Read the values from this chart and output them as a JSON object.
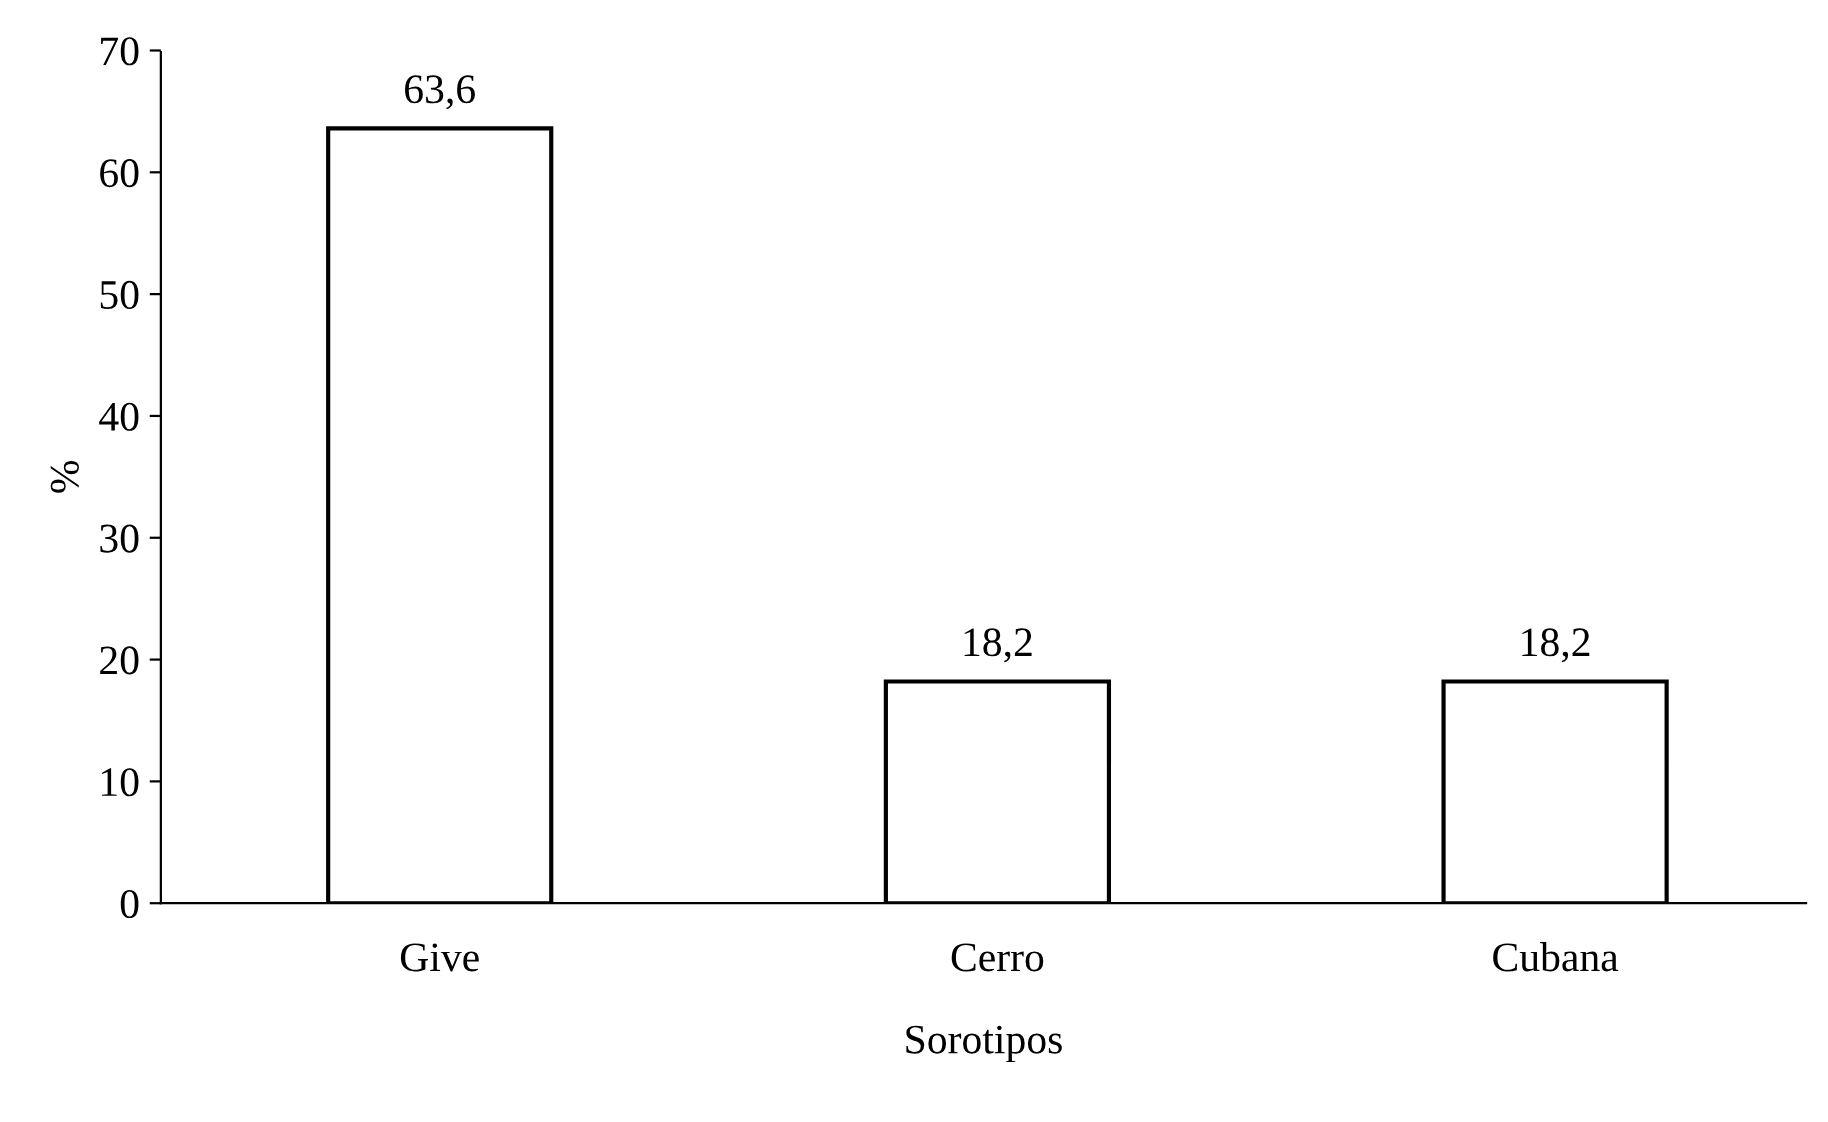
{
  "chart_data": {
    "type": "bar",
    "xlabel": "Sorotipos",
    "ylabel": "%",
    "categories": [
      "Give",
      "Cerro",
      "Cubana"
    ],
    "values": [
      63.6,
      18.2,
      18.2
    ],
    "value_labels": [
      "63,6",
      "18,2",
      "18,2"
    ],
    "color": "#ffffff",
    "ylim": [
      0,
      70
    ],
    "yticks": [
      0,
      10,
      20,
      30,
      40,
      50,
      60,
      70
    ],
    "grid": false,
    "legend": false
  }
}
